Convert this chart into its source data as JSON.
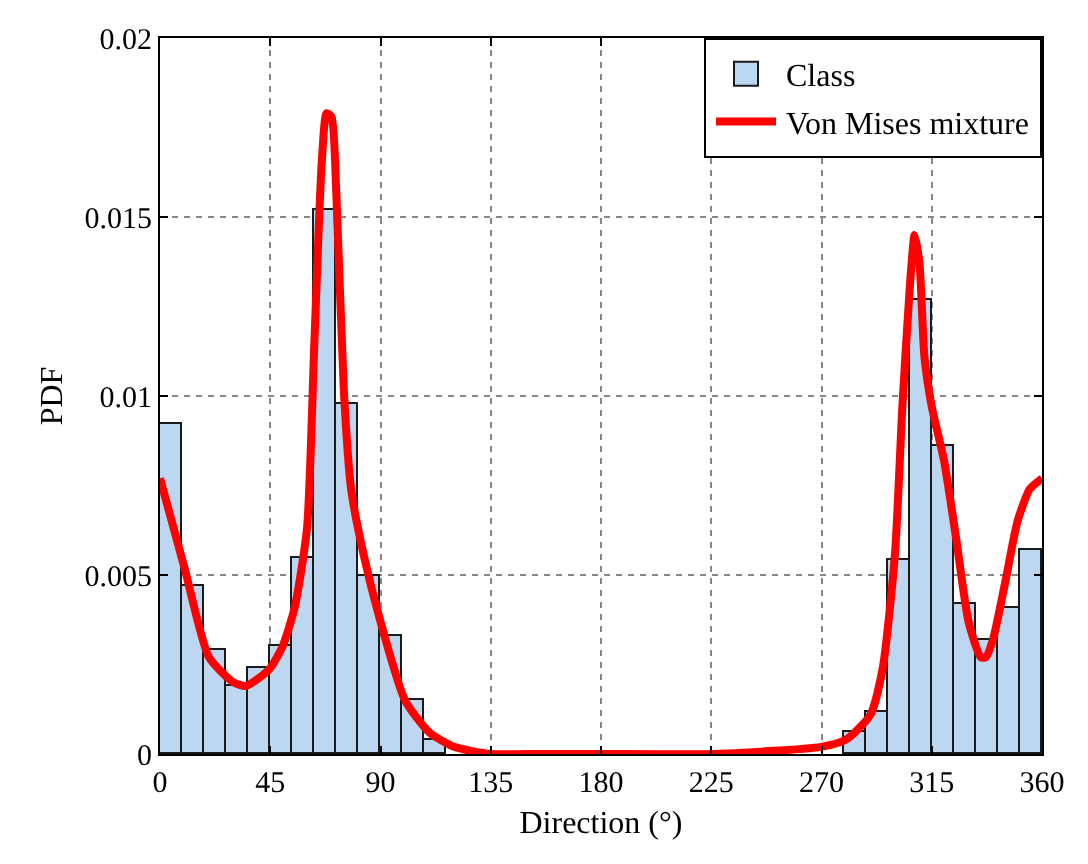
{
  "chart_data": {
    "type": "histogram",
    "xlabel": "Direction (°)",
    "ylabel": "PDF",
    "xlim": [
      0,
      360
    ],
    "xticks": [
      0,
      45,
      90,
      135,
      180,
      225,
      270,
      315,
      360
    ],
    "ylim": [
      0,
      0.02
    ],
    "yticks": [
      0,
      0.005,
      0.01,
      0.015,
      0.02
    ],
    "grid": true,
    "legend": "top right",
    "series": [
      {
        "type": "histogram",
        "name": "Class",
        "color": "#bdd7f0",
        "bins": [
          0,
          9,
          18,
          27,
          36,
          45,
          54,
          63,
          72,
          81,
          90,
          99,
          108,
          117,
          126,
          135,
          144,
          153,
          162,
          171,
          180,
          189,
          198,
          207,
          216,
          225,
          234,
          243,
          252,
          261,
          270,
          279,
          288,
          297,
          306,
          315,
          324,
          333,
          342,
          351,
          360
        ],
        "values": [
          0.0092,
          0.0047,
          0.0029,
          0.0019,
          0.0024,
          0.003,
          0.0055,
          0.0152,
          0.0098,
          0.005,
          0.0033,
          0.0015,
          0.0004,
          null,
          0,
          0,
          0,
          0,
          0,
          0,
          0,
          0,
          0,
          0,
          0,
          0,
          0,
          0,
          0,
          0,
          0,
          0.0006,
          0.0012,
          0.0054,
          0.0127,
          0.0086,
          0.0042,
          0.0032,
          0.0041,
          0.0057
        ]
      },
      {
        "type": "line",
        "name": "Von Mises mixture",
        "color": "#ff0000",
        "line_style": "solid",
        "x": [
          0,
          10,
          20,
          30,
          35,
          40,
          45,
          50,
          55,
          60,
          63,
          66,
          68,
          70,
          72,
          75,
          78,
          83,
          90,
          100,
          110,
          120,
          135,
          150,
          180,
          225,
          270,
          280,
          290,
          295,
          300,
          303,
          306,
          308,
          310,
          312,
          315,
          320,
          325,
          330,
          335,
          337,
          340,
          345,
          350,
          355,
          360
        ],
        "values": [
          0.0077,
          0.0052,
          0.0027,
          0.002,
          0.0019,
          0.0021,
          0.0024,
          0.003,
          0.0041,
          0.0063,
          0.0115,
          0.0165,
          0.0179,
          0.0178,
          0.0156,
          0.0102,
          0.0074,
          0.0056,
          0.0037,
          0.0015,
          0.0006,
          0.0002,
          0,
          0,
          0,
          0,
          0.0002,
          0.0004,
          0.0011,
          0.0024,
          0.0056,
          0.0097,
          0.013,
          0.0145,
          0.0137,
          0.0111,
          0.0097,
          0.0082,
          0.006,
          0.0037,
          0.0027,
          0.0027,
          0.0032,
          0.0048,
          0.0065,
          0.0074,
          0.0077
        ]
      }
    ]
  }
}
